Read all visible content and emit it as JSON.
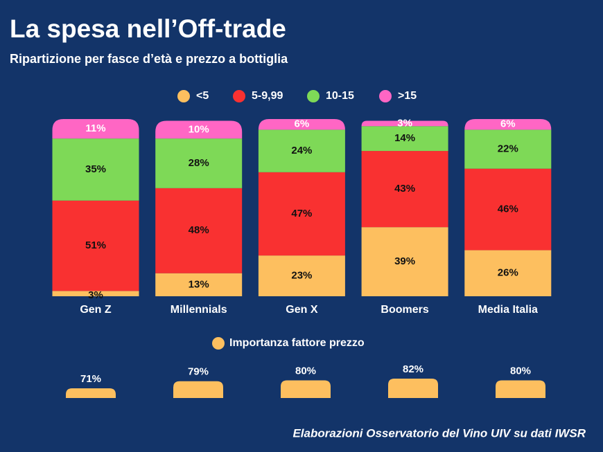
{
  "chart_data": [
    {
      "type": "stacked-bar",
      "title": "La spesa nell’Off-trade",
      "subtitle": "Ripartizione per fasce d’età e prezzo a bottiglia",
      "categories": [
        "Gen Z",
        "Millennials",
        "Gen X",
        "Boomers",
        "Media Italia"
      ],
      "ylim": [
        0,
        100
      ],
      "series": [
        {
          "name": "<5",
          "color": "#fdbf5f",
          "values": [
            3,
            13,
            23,
            39,
            26
          ],
          "value_labels": [
            "3%",
            "13%",
            "23%",
            "39%",
            "26%"
          ]
        },
        {
          "name": "5-9,99",
          "color": "#f93131",
          "values": [
            51,
            48,
            47,
            43,
            46
          ],
          "value_labels": [
            "51%",
            "48%",
            "47%",
            "43%",
            "46%"
          ]
        },
        {
          "name": "10-15",
          "color": "#7ed957",
          "values": [
            35,
            28,
            24,
            14,
            22
          ],
          "value_labels": [
            "35%",
            "28%",
            "24%",
            "14%",
            "22%"
          ]
        },
        {
          "name": ">15",
          "color": "#ff66c4",
          "values": [
            11,
            10,
            6,
            3,
            6
          ],
          "value_labels": [
            "11%",
            "10%",
            "6%",
            "3%",
            "6%"
          ]
        }
      ]
    },
    {
      "type": "bar",
      "ylim": [
        60,
        100
      ],
      "series": [
        {
          "name": "Importanza fattore prezzo",
          "color": "#fdbf5f",
          "values": [
            71,
            79,
            80,
            82,
            80
          ],
          "value_labels": [
            "71%",
            "79%",
            "80%",
            "82%",
            "80%"
          ]
        }
      ]
    }
  ],
  "source": "Elaborazioni Osservatorio del Vino UIV su dati IWSR"
}
